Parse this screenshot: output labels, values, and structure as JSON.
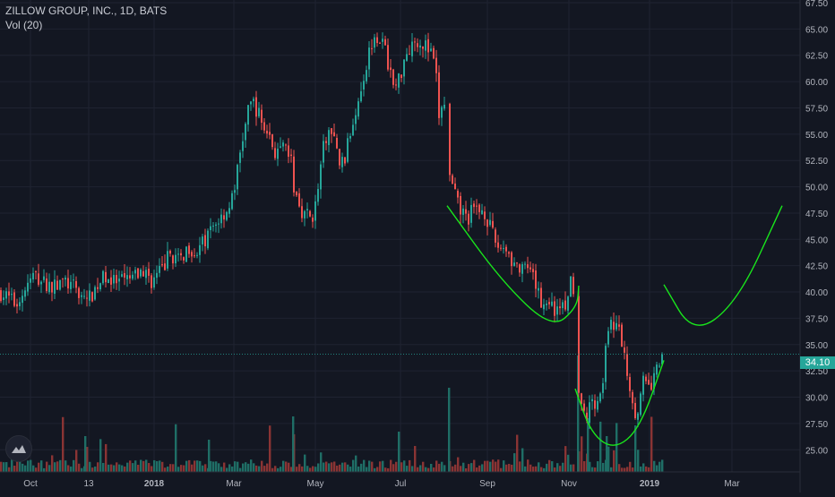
{
  "legend": {
    "symbol_line": "ZILLOW GROUP, INC., 1D, BATS",
    "volume_line": "Vol (20)"
  },
  "last_price_label": "34.10",
  "colors": {
    "background": "#131722",
    "grid": "#1f2331",
    "up": "#26a69a",
    "down": "#ef5350",
    "up_volume": "#1f6e66",
    "down_volume": "#8a3434",
    "drawing": "#19e61c",
    "last_price": "#26a69a"
  },
  "chart_data": {
    "type": "candlestick",
    "title": "ZILLOW GROUP, INC., 1D, BATS",
    "subtitle": "Vol (20)",
    "x_axis": {
      "ticks": [
        "Oct",
        "13",
        "2018",
        "Mar",
        "May",
        "Jul",
        "Sep",
        "Nov",
        "2019",
        "Mar"
      ],
      "bold_ticks": [
        "2018",
        "2019"
      ]
    },
    "y_axis": {
      "position": "right",
      "ylim": [
        24,
        67.5
      ],
      "ticks": [
        25,
        27.5,
        30,
        32.5,
        35,
        37.5,
        40,
        42.5,
        45,
        47.5,
        50,
        52.5,
        55,
        57.5,
        60,
        62.5,
        65,
        67.5
      ],
      "tick_labels": [
        "25.00",
        "27.50",
        "30.00",
        "32.50",
        "35.00",
        "37.50",
        "40.00",
        "42.50",
        "45.00",
        "47.50",
        "50.00",
        "52.50",
        "55.00",
        "57.50",
        "60.00",
        "62.50",
        "65.00",
        "67.50"
      ]
    },
    "grid": true,
    "last_price": 34.1,
    "price_path": [
      [
        0,
        40.0
      ],
      [
        8,
        39.5
      ],
      [
        18,
        38.8
      ],
      [
        28,
        40.3
      ],
      [
        38,
        41.6
      ],
      [
        48,
        40.9
      ],
      [
        60,
        40.5
      ],
      [
        72,
        41.0
      ],
      [
        82,
        40.4
      ],
      [
        92,
        39.6
      ],
      [
        100,
        39.4
      ],
      [
        108,
        40.6
      ],
      [
        118,
        41.6
      ],
      [
        128,
        40.8
      ],
      [
        138,
        41.0
      ],
      [
        150,
        41.4
      ],
      [
        160,
        42.0
      ],
      [
        170,
        41.0
      ],
      [
        180,
        42.0
      ],
      [
        190,
        43.7
      ],
      [
        200,
        42.8
      ],
      [
        210,
        44.4
      ],
      [
        220,
        43.8
      ],
      [
        230,
        45.0
      ],
      [
        240,
        46.5
      ],
      [
        250,
        47.5
      ],
      [
        258,
        48.4
      ],
      [
        265,
        51.5
      ],
      [
        270,
        54.2
      ],
      [
        276,
        56.8
      ],
      [
        282,
        58.3
      ],
      [
        288,
        57.0
      ],
      [
        294,
        55.8
      ],
      [
        300,
        55.0
      ],
      [
        306,
        53.4
      ],
      [
        312,
        53.1
      ],
      [
        318,
        53.6
      ],
      [
        324,
        53.0
      ],
      [
        328,
        50.0
      ],
      [
        332,
        48.8
      ],
      [
        338,
        47.6
      ],
      [
        344,
        47.2
      ],
      [
        350,
        47.3
      ],
      [
        356,
        50.2
      ],
      [
        362,
        54.3
      ],
      [
        368,
        55.4
      ],
      [
        374,
        54.0
      ],
      [
        380,
        52.0
      ],
      [
        386,
        53.0
      ],
      [
        392,
        55.6
      ],
      [
        398,
        57.8
      ],
      [
        404,
        60.0
      ],
      [
        410,
        62.0
      ],
      [
        416,
        64.3
      ],
      [
        422,
        64.5
      ],
      [
        428,
        63.4
      ],
      [
        434,
        61.6
      ],
      [
        440,
        59.2
      ],
      [
        446,
        60.4
      ],
      [
        452,
        62.6
      ],
      [
        458,
        63.4
      ],
      [
        464,
        64.1
      ],
      [
        470,
        63.8
      ],
      [
        476,
        63.3
      ],
      [
        482,
        62.4
      ],
      [
        486,
        61.2
      ],
      [
        490,
        56.8
      ],
      [
        494,
        57.4
      ],
      [
        498,
        58.6
      ],
      [
        502,
        50.8
      ],
      [
        506,
        49.6
      ],
      [
        510,
        48.4
      ],
      [
        516,
        47.5
      ],
      [
        522,
        47.0
      ],
      [
        528,
        47.8
      ],
      [
        534,
        47.7
      ],
      [
        540,
        47.9
      ],
      [
        546,
        46.4
      ],
      [
        552,
        44.8
      ],
      [
        558,
        44.2
      ],
      [
        564,
        44.5
      ],
      [
        570,
        43.2
      ],
      [
        576,
        42.5
      ],
      [
        582,
        41.8
      ],
      [
        588,
        42.2
      ],
      [
        594,
        41.3
      ],
      [
        600,
        40.1
      ],
      [
        606,
        38.6
      ],
      [
        612,
        39.6
      ],
      [
        618,
        38.0
      ],
      [
        624,
        39.2
      ],
      [
        630,
        38.2
      ],
      [
        636,
        41.0
      ],
      [
        640,
        40.6
      ],
      [
        644,
        31.5
      ],
      [
        648,
        30.2
      ],
      [
        652,
        28.8
      ],
      [
        656,
        27.6
      ],
      [
        660,
        30.2
      ],
      [
        666,
        29.4
      ],
      [
        672,
        31.2
      ],
      [
        676,
        34.2
      ],
      [
        680,
        36.5
      ],
      [
        686,
        37.2
      ],
      [
        692,
        36.0
      ],
      [
        698,
        33.5
      ],
      [
        704,
        30.5
      ],
      [
        710,
        28.4
      ],
      [
        714,
        29.5
      ],
      [
        718,
        31.5
      ],
      [
        722,
        30.8
      ],
      [
        728,
        31.2
      ],
      [
        734,
        32.8
      ],
      [
        739,
        34.1
      ]
    ],
    "annotations": [
      {
        "type": "curve",
        "color": "#19e61c",
        "points": [
          [
            499,
            48.2
          ],
          [
            560,
            41.0
          ],
          [
            616,
            36.5
          ],
          [
            644,
            38.5
          ],
          [
            646,
            40.6
          ]
        ]
      },
      {
        "type": "curve",
        "color": "#19e61c",
        "points": [
          [
            642,
            30.8
          ],
          [
            660,
            26.5
          ],
          [
            686,
            25.0
          ],
          [
            714,
            27.0
          ],
          [
            741,
            33.5
          ]
        ]
      },
      {
        "type": "curve",
        "color": "#19e61c",
        "points": [
          [
            741,
            40.7
          ],
          [
            774,
            35.9
          ],
          [
            823,
            39.0
          ],
          [
            873,
            48.2
          ]
        ]
      }
    ]
  }
}
